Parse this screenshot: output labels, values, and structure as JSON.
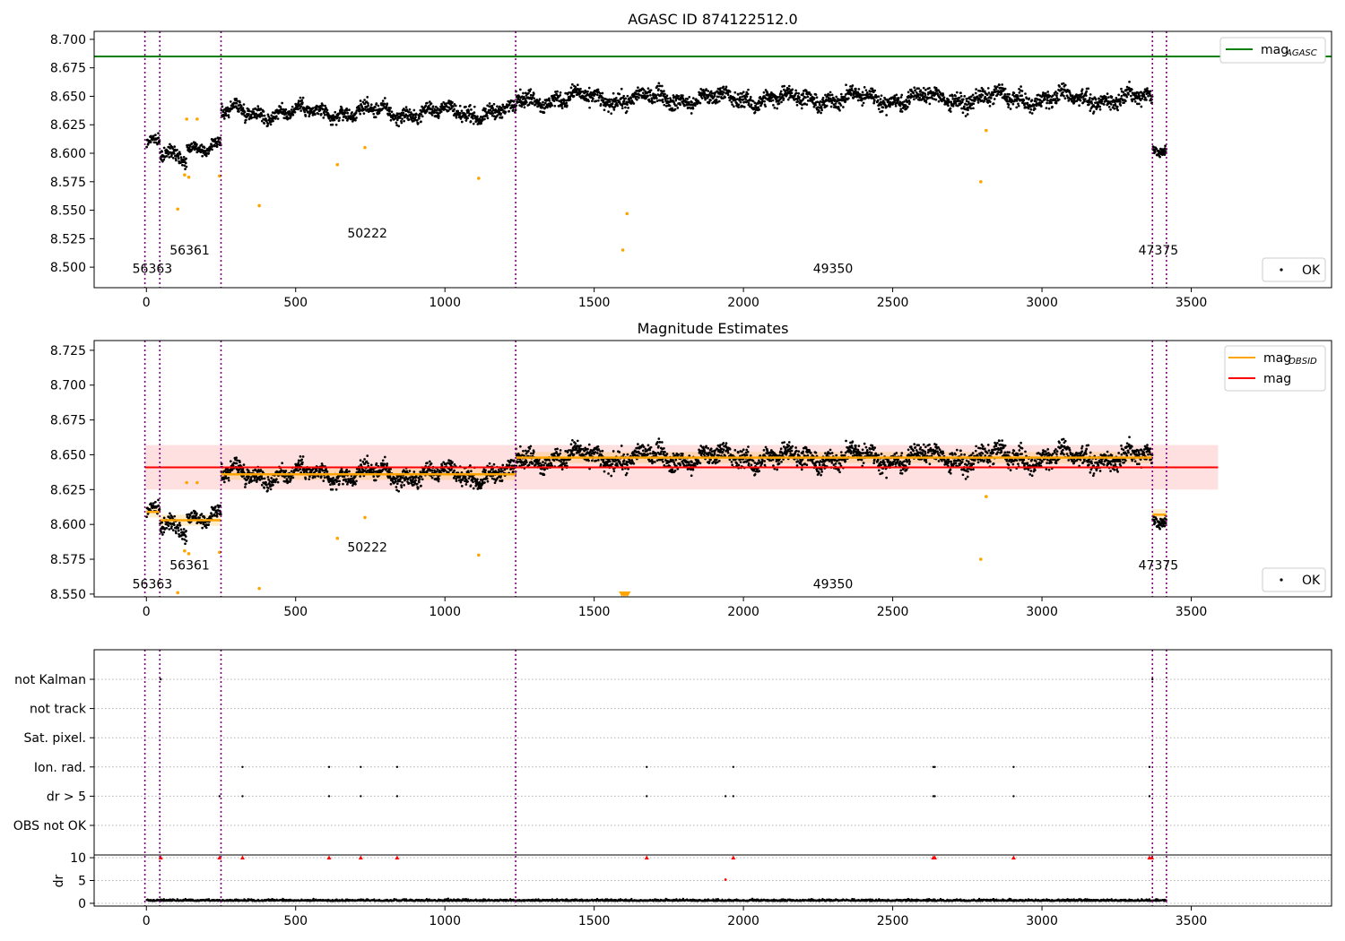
{
  "chart_data": [
    {
      "type": "scatter",
      "title": "AGASC ID 874122512.0",
      "xlabel": "",
      "ylabel": "",
      "xlim": [
        -175,
        3970
      ],
      "ylim": [
        8.482,
        8.707
      ],
      "xticks": [
        0,
        500,
        1000,
        1500,
        2000,
        2500,
        3000,
        3500
      ],
      "xtick_labels": [
        "0",
        "500",
        "1000",
        "1500",
        "2000",
        "2500",
        "3000",
        "3500"
      ],
      "yticks": [
        8.5,
        8.525,
        8.55,
        8.575,
        8.6,
        8.625,
        8.65,
        8.675,
        8.7
      ],
      "ytick_labels": [
        "8.500",
        "8.525",
        "8.550",
        "8.575",
        "8.600",
        "8.625",
        "8.650",
        "8.675",
        "8.700"
      ],
      "grid": false,
      "legend_upper": {
        "position": "top-right",
        "entries": [
          {
            "label": "mag",
            "subscript": "AGASC",
            "color": "#008000",
            "kind": "line"
          }
        ]
      },
      "legend_lower": {
        "position": "bottom-right",
        "entries": [
          {
            "label": "OK",
            "color": "#000000",
            "kind": "point"
          }
        ]
      },
      "mag_agasc": 8.685,
      "observation_boundaries": [
        -5,
        45,
        250,
        1237,
        3370,
        3417
      ],
      "observation_labels": [
        {
          "text": "56363",
          "x": 20,
          "y": 8.495
        },
        {
          "text": "56361",
          "x": 145,
          "y": 8.511
        },
        {
          "text": "50222",
          "x": 740,
          "y": 8.526
        },
        {
          "text": "49350",
          "x": 2300,
          "y": 8.495
        },
        {
          "text": "47375",
          "x": 3390,
          "y": 8.511
        }
      ],
      "segments": [
        {
          "x0": 0,
          "x1": 45,
          "level": 8.608,
          "noise": 0.006
        },
        {
          "x0": 45,
          "x1": 135,
          "level": 8.597,
          "noise": 0.007
        },
        {
          "x0": 135,
          "x1": 250,
          "level": 8.607,
          "noise": 0.006
        },
        {
          "x0": 250,
          "x1": 1237,
          "level": 8.636,
          "noise": 0.008
        },
        {
          "x0": 1237,
          "x1": 3370,
          "level": 8.648,
          "noise": 0.009
        },
        {
          "x0": 3370,
          "x1": 3417,
          "level": 8.605,
          "noise": 0.006
        }
      ],
      "series": [
        {
          "name": "OK",
          "color": "#000000"
        },
        {
          "name": "",
          "color": "#ffa500",
          "x": [
            105,
            128,
            135,
            142,
            170,
            245,
            378,
            640,
            732,
            1113,
            1596,
            1610,
            2795,
            2813
          ],
          "y": [
            8.551,
            8.581,
            8.63,
            8.579,
            8.63,
            8.58,
            8.554,
            8.59,
            8.605,
            8.578,
            8.515,
            8.547,
            8.575,
            8.62
          ]
        }
      ]
    },
    {
      "type": "scatter",
      "title": "Magnitude Estimates",
      "xlabel": "",
      "ylabel": "",
      "xlim": [
        -175,
        3970
      ],
      "ylim": [
        8.548,
        8.732
      ],
      "xticks": [
        0,
        500,
        1000,
        1500,
        2000,
        2500,
        3000,
        3500
      ],
      "xtick_labels": [
        "0",
        "500",
        "1000",
        "1500",
        "2000",
        "2500",
        "3000",
        "3500"
      ],
      "yticks": [
        8.55,
        8.575,
        8.6,
        8.625,
        8.65,
        8.675,
        8.7,
        8.725
      ],
      "ytick_labels": [
        "8.550",
        "8.575",
        "8.600",
        "8.625",
        "8.650",
        "8.675",
        "8.700",
        "8.725"
      ],
      "grid": false,
      "legend_upper": {
        "position": "top-right",
        "entries": [
          {
            "label": "mag",
            "subscript": "OBSID",
            "color": "#ffa500",
            "kind": "line"
          },
          {
            "label": "mag",
            "subscript": "",
            "color": "#ff0000",
            "kind": "line"
          }
        ]
      },
      "legend_lower": {
        "position": "bottom-right",
        "entries": [
          {
            "label": "OK",
            "color": "#000000",
            "kind": "point"
          }
        ]
      },
      "mag": 8.641,
      "mag_band": [
        8.625,
        8.657
      ],
      "mag_band_xlim": [
        -5,
        3590
      ],
      "mag_obsid": [
        {
          "x0": 0,
          "x1": 45,
          "y": 8.609,
          "band": [
            8.605,
            8.613
          ]
        },
        {
          "x0": 45,
          "x1": 250,
          "y": 8.603,
          "band": [
            8.599,
            8.607
          ]
        },
        {
          "x0": 250,
          "x1": 1237,
          "y": 8.636,
          "band": [
            8.632,
            8.64
          ]
        },
        {
          "x0": 1237,
          "x1": 3370,
          "y": 8.648,
          "band": [
            8.644,
            8.652
          ]
        },
        {
          "x0": 3370,
          "x1": 3417,
          "y": 8.607,
          "band": [
            8.603,
            8.611
          ]
        }
      ],
      "observation_boundaries": [
        -5,
        45,
        250,
        1237,
        3370,
        3417
      ],
      "observation_labels": [
        {
          "text": "56363",
          "x": 20,
          "y": 8.554
        },
        {
          "text": "56361",
          "x": 145,
          "y": 8.5675
        },
        {
          "text": "50222",
          "x": 740,
          "y": 8.5805
        },
        {
          "text": "49350",
          "x": 2300,
          "y": 8.554
        },
        {
          "text": "47375",
          "x": 3390,
          "y": 8.5675
        }
      ],
      "clipped_markers": [
        {
          "x": 1593
        },
        {
          "x": 1600
        },
        {
          "x": 1606
        },
        {
          "x": 1612
        }
      ]
    },
    {
      "type": "scatter",
      "title": "",
      "xlabel": "",
      "xlim": [
        -175,
        3970
      ],
      "xticks": [
        0,
        500,
        1000,
        1500,
        2000,
        2500,
        3000,
        3500
      ],
      "xtick_labels": [
        "0",
        "500",
        "1000",
        "1500",
        "2000",
        "2500",
        "3000",
        "3500"
      ],
      "flag_rows": [
        "not Kalman",
        "not track",
        "Sat. pixel.",
        "Ion. rad.",
        "dr > 5",
        "OBS not OK"
      ],
      "flag_points": {
        "not Kalman": [
          48,
          3370
        ],
        "not track": [],
        "Sat. pixel.": [],
        "Ion. rad.": [
          322,
          612,
          718,
          840,
          1676,
          1966,
          2636,
          2641,
          2905,
          3360
        ],
        "dr > 5": [
          245,
          322,
          612,
          718,
          840,
          1676,
          1940,
          1966,
          2636,
          2641,
          2905,
          3360
        ],
        "OBS not OK": []
      },
      "dr_panel": {
        "ylabel": "dr",
        "ylim": [
          -0.6,
          10.6
        ],
        "yticks": [
          0,
          5,
          10
        ],
        "ytick_labels": [
          "0",
          "5",
          "10"
        ],
        "base_level": 0.5,
        "outliers_capped": [
          48,
          245,
          322,
          612,
          718,
          840,
          1676,
          1966,
          2636,
          2641,
          2905,
          3360,
          3368
        ],
        "outliers": [
          {
            "x": 1940,
            "y": 5.2
          }
        ]
      },
      "observation_boundaries": [
        -5,
        45,
        250,
        1237,
        3370,
        3417
      ]
    }
  ]
}
